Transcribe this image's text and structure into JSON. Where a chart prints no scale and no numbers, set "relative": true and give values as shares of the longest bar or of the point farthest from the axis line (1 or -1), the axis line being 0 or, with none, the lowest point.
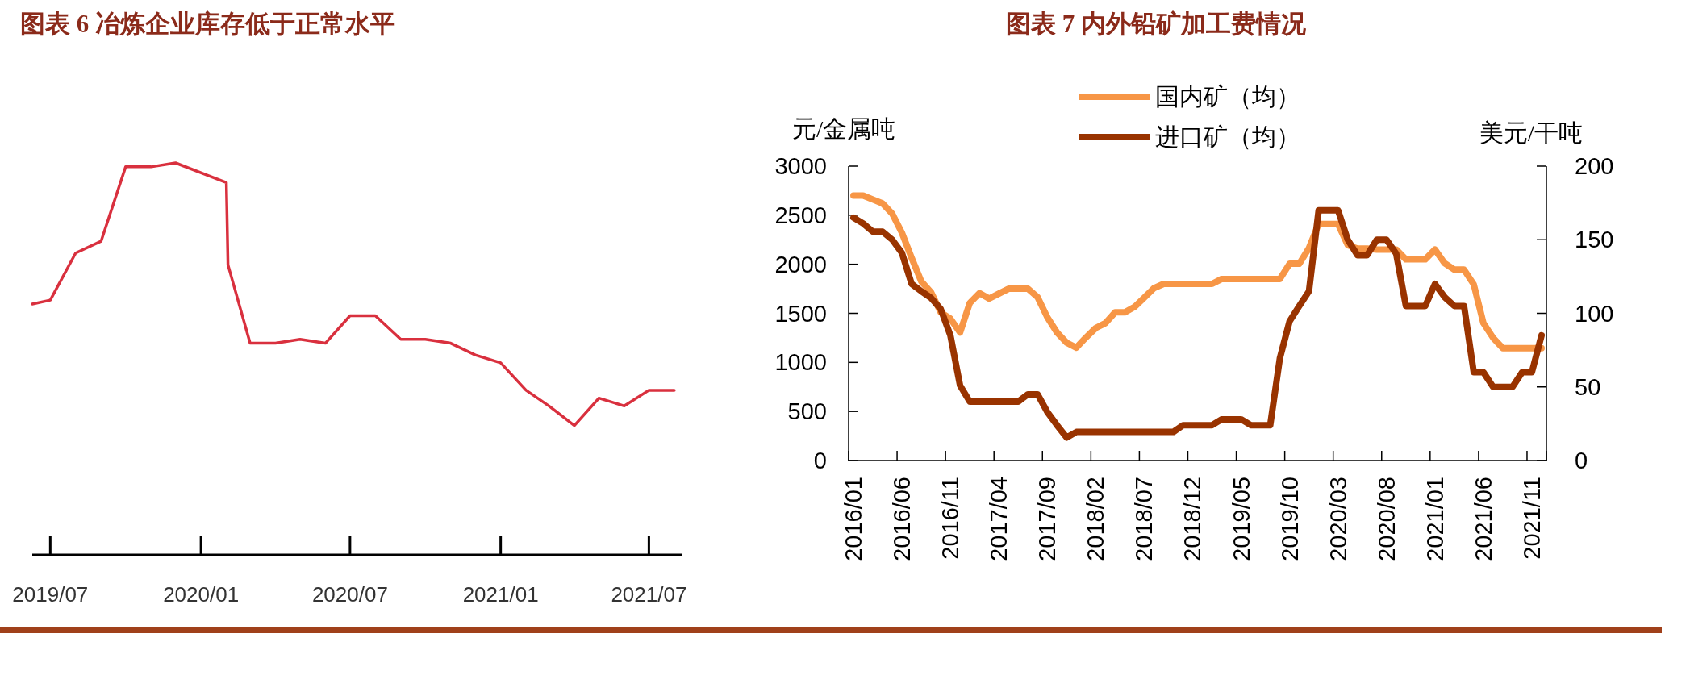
{
  "chart_data": [
    {
      "type": "line",
      "title": "图表 6  冶炼企业库存低于正常水平",
      "relative": true,
      "x": [
        "2019-06-09",
        "2019-07-01",
        "2019-08-01",
        "2019-09-01",
        "2019-10-01",
        "2019-11-01",
        "2019-12-01",
        "2020-02-01",
        "2020-02-03",
        "2020-03-01",
        "2020-04-01",
        "2020-05-01",
        "2020-06-01",
        "2020-07-01",
        "2020-08-01",
        "2020-09-01",
        "2020-10-01",
        "2020-11-01",
        "2020-12-01",
        "2021-01-01",
        "2021-02-01",
        "2021-03-01",
        "2021-04-01",
        "2021-05-01",
        "2021-06-01",
        "2021-07-01",
        "2021-08-01"
      ],
      "xlim": [
        "2019-06-09",
        "2021-08-10"
      ],
      "xticks": [
        {
          "value": "2019-07-01",
          "label": "2019/07"
        },
        {
          "value": "2020-01-01",
          "label": "2020/01"
        },
        {
          "value": "2020-07-01",
          "label": "2020/07"
        },
        {
          "value": "2021-01-01",
          "label": "2021/01"
        },
        {
          "value": "2021-07-01",
          "label": "2021/07"
        }
      ],
      "series": [
        {
          "color": "#d9303e",
          "values": [
            0.64,
            0.65,
            0.77,
            0.8,
            0.99,
            0.99,
            1.0,
            0.95,
            0.74,
            0.54,
            0.54,
            0.55,
            0.54,
            0.61,
            0.61,
            0.55,
            0.55,
            0.54,
            0.51,
            0.49,
            0.42,
            0.38,
            0.33,
            0.4,
            0.38,
            0.42,
            0.42
          ]
        }
      ]
    },
    {
      "type": "line",
      "title": "图表 7  内外铅矿加工费情况",
      "ylabel": "元/金属吨",
      "y2label": "美元/干吨",
      "legend": "top",
      "categories": [
        "2016/01",
        null,
        null,
        null,
        null,
        "2016/06",
        null,
        null,
        null,
        null,
        "2016/11",
        null,
        null,
        null,
        null,
        "2017/04",
        null,
        null,
        null,
        null,
        "2017/09",
        null,
        null,
        null,
        null,
        "2018/02",
        null,
        null,
        null,
        null,
        "2018/07",
        null,
        null,
        null,
        null,
        "2018/12",
        null,
        null,
        null,
        null,
        "2019/05",
        null,
        null,
        null,
        null,
        "2019/10",
        null,
        null,
        null,
        null,
        "2020/03",
        null,
        null,
        null,
        null,
        "2020/08",
        null,
        null,
        null,
        null,
        "2021/01",
        null,
        null,
        null,
        null,
        "2021/06",
        null,
        null,
        null,
        null,
        "2021/11",
        null
      ],
      "ylim": [
        0,
        3000
      ],
      "yticks": [
        0,
        500,
        1000,
        1500,
        2000,
        2500,
        3000
      ],
      "y2lim": [
        0,
        200
      ],
      "y2ticks": [
        0,
        50,
        100,
        150,
        200
      ],
      "series": [
        {
          "name": "国内矿（均）",
          "color": "#f79646",
          "values": [
            2700,
            2700,
            2660,
            2620,
            2515,
            2320,
            2065,
            1825,
            1715,
            1510,
            1445,
            1305,
            1605,
            1705,
            1650,
            1700,
            1750,
            1750,
            1750,
            1665,
            1460,
            1305,
            1200,
            1150,
            1255,
            1350,
            1400,
            1510,
            1510,
            1565,
            1660,
            1755,
            1800,
            1800,
            1800,
            1800,
            1800,
            1800,
            1850,
            1850,
            1850,
            1850,
            1850,
            1850,
            1850,
            2005,
            2005,
            2165,
            2410,
            2410,
            2410,
            2195,
            2160,
            2160,
            2150,
            2150,
            2150,
            2050,
            2050,
            2050,
            2150,
            2010,
            1945,
            1945,
            1795,
            1400,
            1250,
            1145,
            1145,
            1145,
            1145,
            1145
          ]
        },
        {
          "name": "进口矿（均）",
          "color": "#993300",
          "axis": "y2",
          "values": [
            165,
            161,
            155.5,
            155.5,
            150,
            141,
            120,
            115,
            110.5,
            103,
            85,
            51,
            40,
            40,
            40,
            40,
            40,
            40,
            45,
            45,
            33,
            24,
            15.6,
            19.4,
            19.4,
            19.4,
            19.4,
            19.4,
            19.4,
            19.4,
            19.4,
            19.4,
            19.4,
            19.4,
            24,
            24,
            24,
            24,
            28,
            28,
            28,
            24,
            24,
            24,
            69.6,
            94.6,
            105,
            115,
            170,
            170,
            170,
            150,
            139.5,
            139.5,
            150,
            150,
            140.5,
            105,
            105,
            105,
            120,
            111,
            105,
            105,
            60,
            60,
            50,
            50,
            50,
            60,
            60,
            85
          ]
        }
      ]
    }
  ]
}
